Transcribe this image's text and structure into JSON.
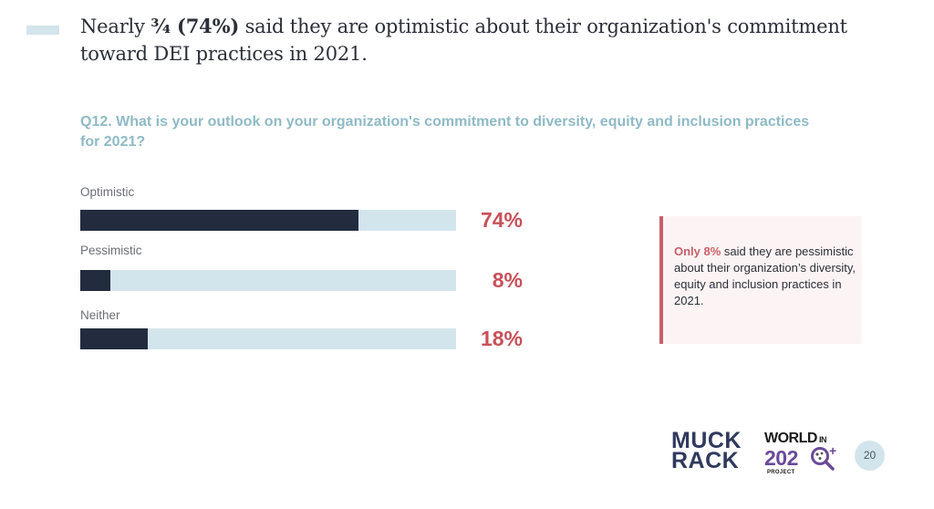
{
  "header": {
    "headline_pre": "Nearly ",
    "headline_bold": "¾ (74%)",
    "headline_post": " said they are optimistic about their organization's commitment toward DEI practices in 2021."
  },
  "question": "Q12. What is your outlook on your organization's commitment to diversity, equity and inclusion practices for 2021?",
  "callout": {
    "highlight": "Only 8%",
    "text": " said they are pessimistic about their organization’s diversity, equity and inclusion practices in 2021."
  },
  "logos": {
    "muck_rack_line1": "MUCK",
    "muck_rack_line2": "RACK",
    "world_line1": "WORLD",
    "world_in": "IN",
    "world_year": "202",
    "world_plus": "+",
    "world_project": "PROJECT"
  },
  "page_number": "20",
  "colors": {
    "bar_fill": "#232c3f",
    "bar_track": "#d3e5ec",
    "value_text": "#c8505a",
    "question_text": "#8fbac6",
    "callout_accent": "#c8606a"
  },
  "chart_data": {
    "type": "bar",
    "orientation": "horizontal",
    "title": "Q12. What is your outlook on your organization's commitment to diversity, equity and inclusion practices for 2021?",
    "categories": [
      "Optimistic",
      "Pessimistic",
      "Neither"
    ],
    "values": [
      74,
      8,
      18
    ],
    "value_labels": [
      "74%",
      "8%",
      "18%"
    ],
    "unit": "%",
    "xlim": [
      0,
      100
    ],
    "xlabel": "",
    "ylabel": "",
    "grid": false,
    "legend": "none"
  }
}
